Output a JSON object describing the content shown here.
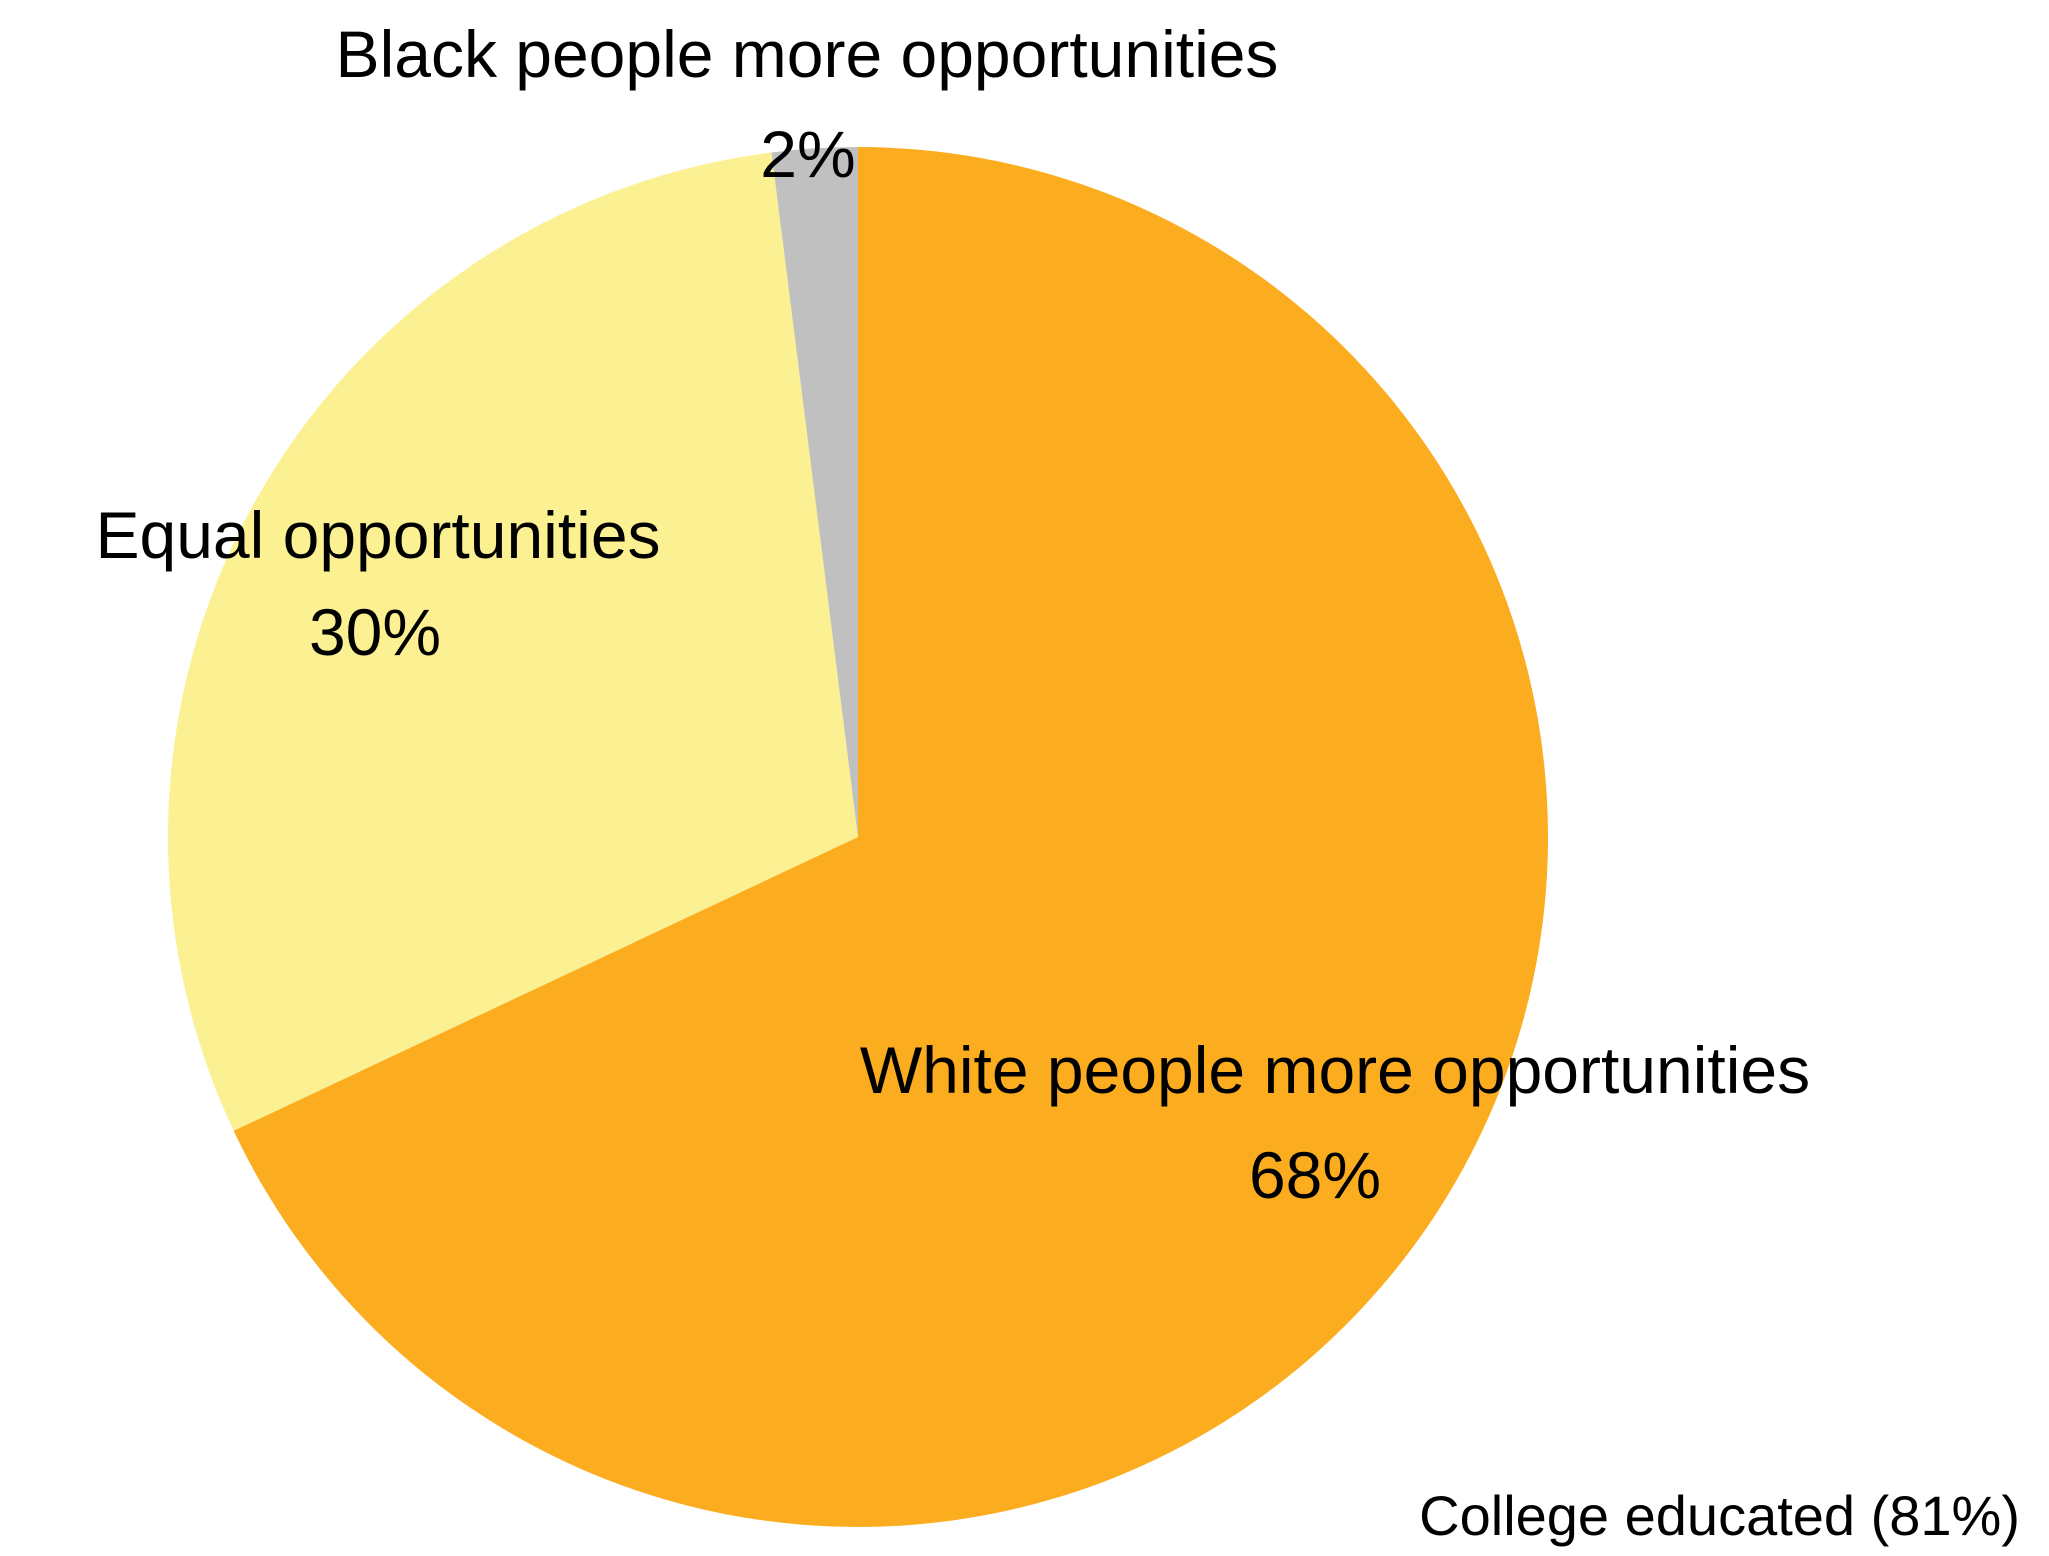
{
  "chart_data": {
    "type": "pie",
    "caption": "College educated (81%)",
    "start_angle_deg": 0,
    "direction": "clockwise",
    "slices": [
      {
        "label": "White people more opportunities",
        "value": 68,
        "value_label": "68%",
        "color": "#FBAC1F"
      },
      {
        "label": "Equal opportunities",
        "value": 30,
        "value_label": "30%",
        "color": "#FBF092"
      },
      {
        "label": "Black people more opportunities",
        "value": 2,
        "value_label": "2%",
        "color": "#C0C0C0"
      }
    ]
  }
}
